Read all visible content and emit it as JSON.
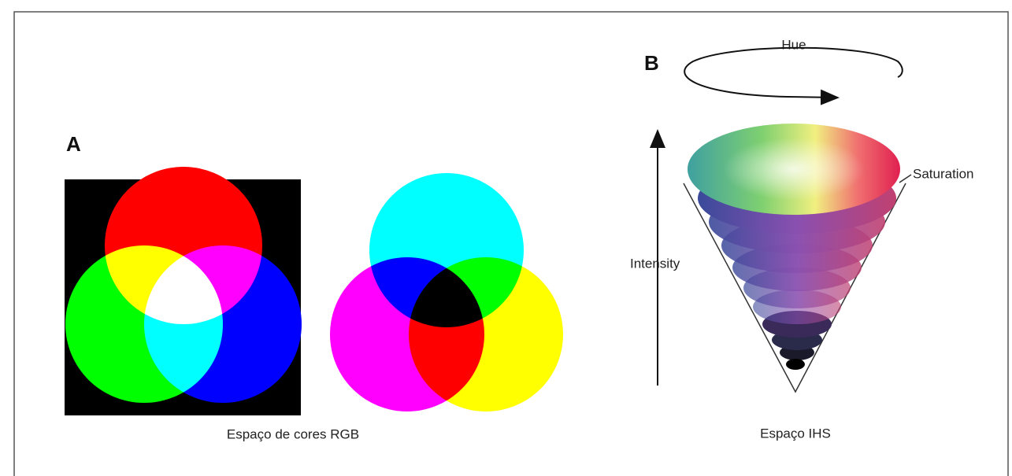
{
  "panel_a": {
    "label": "A",
    "caption": "Espaço de cores RGB"
  },
  "panel_b": {
    "label": "B",
    "caption": "Espaço IHS",
    "hue": "Hue",
    "saturation": "Saturation",
    "intensity": "Intensity"
  }
}
